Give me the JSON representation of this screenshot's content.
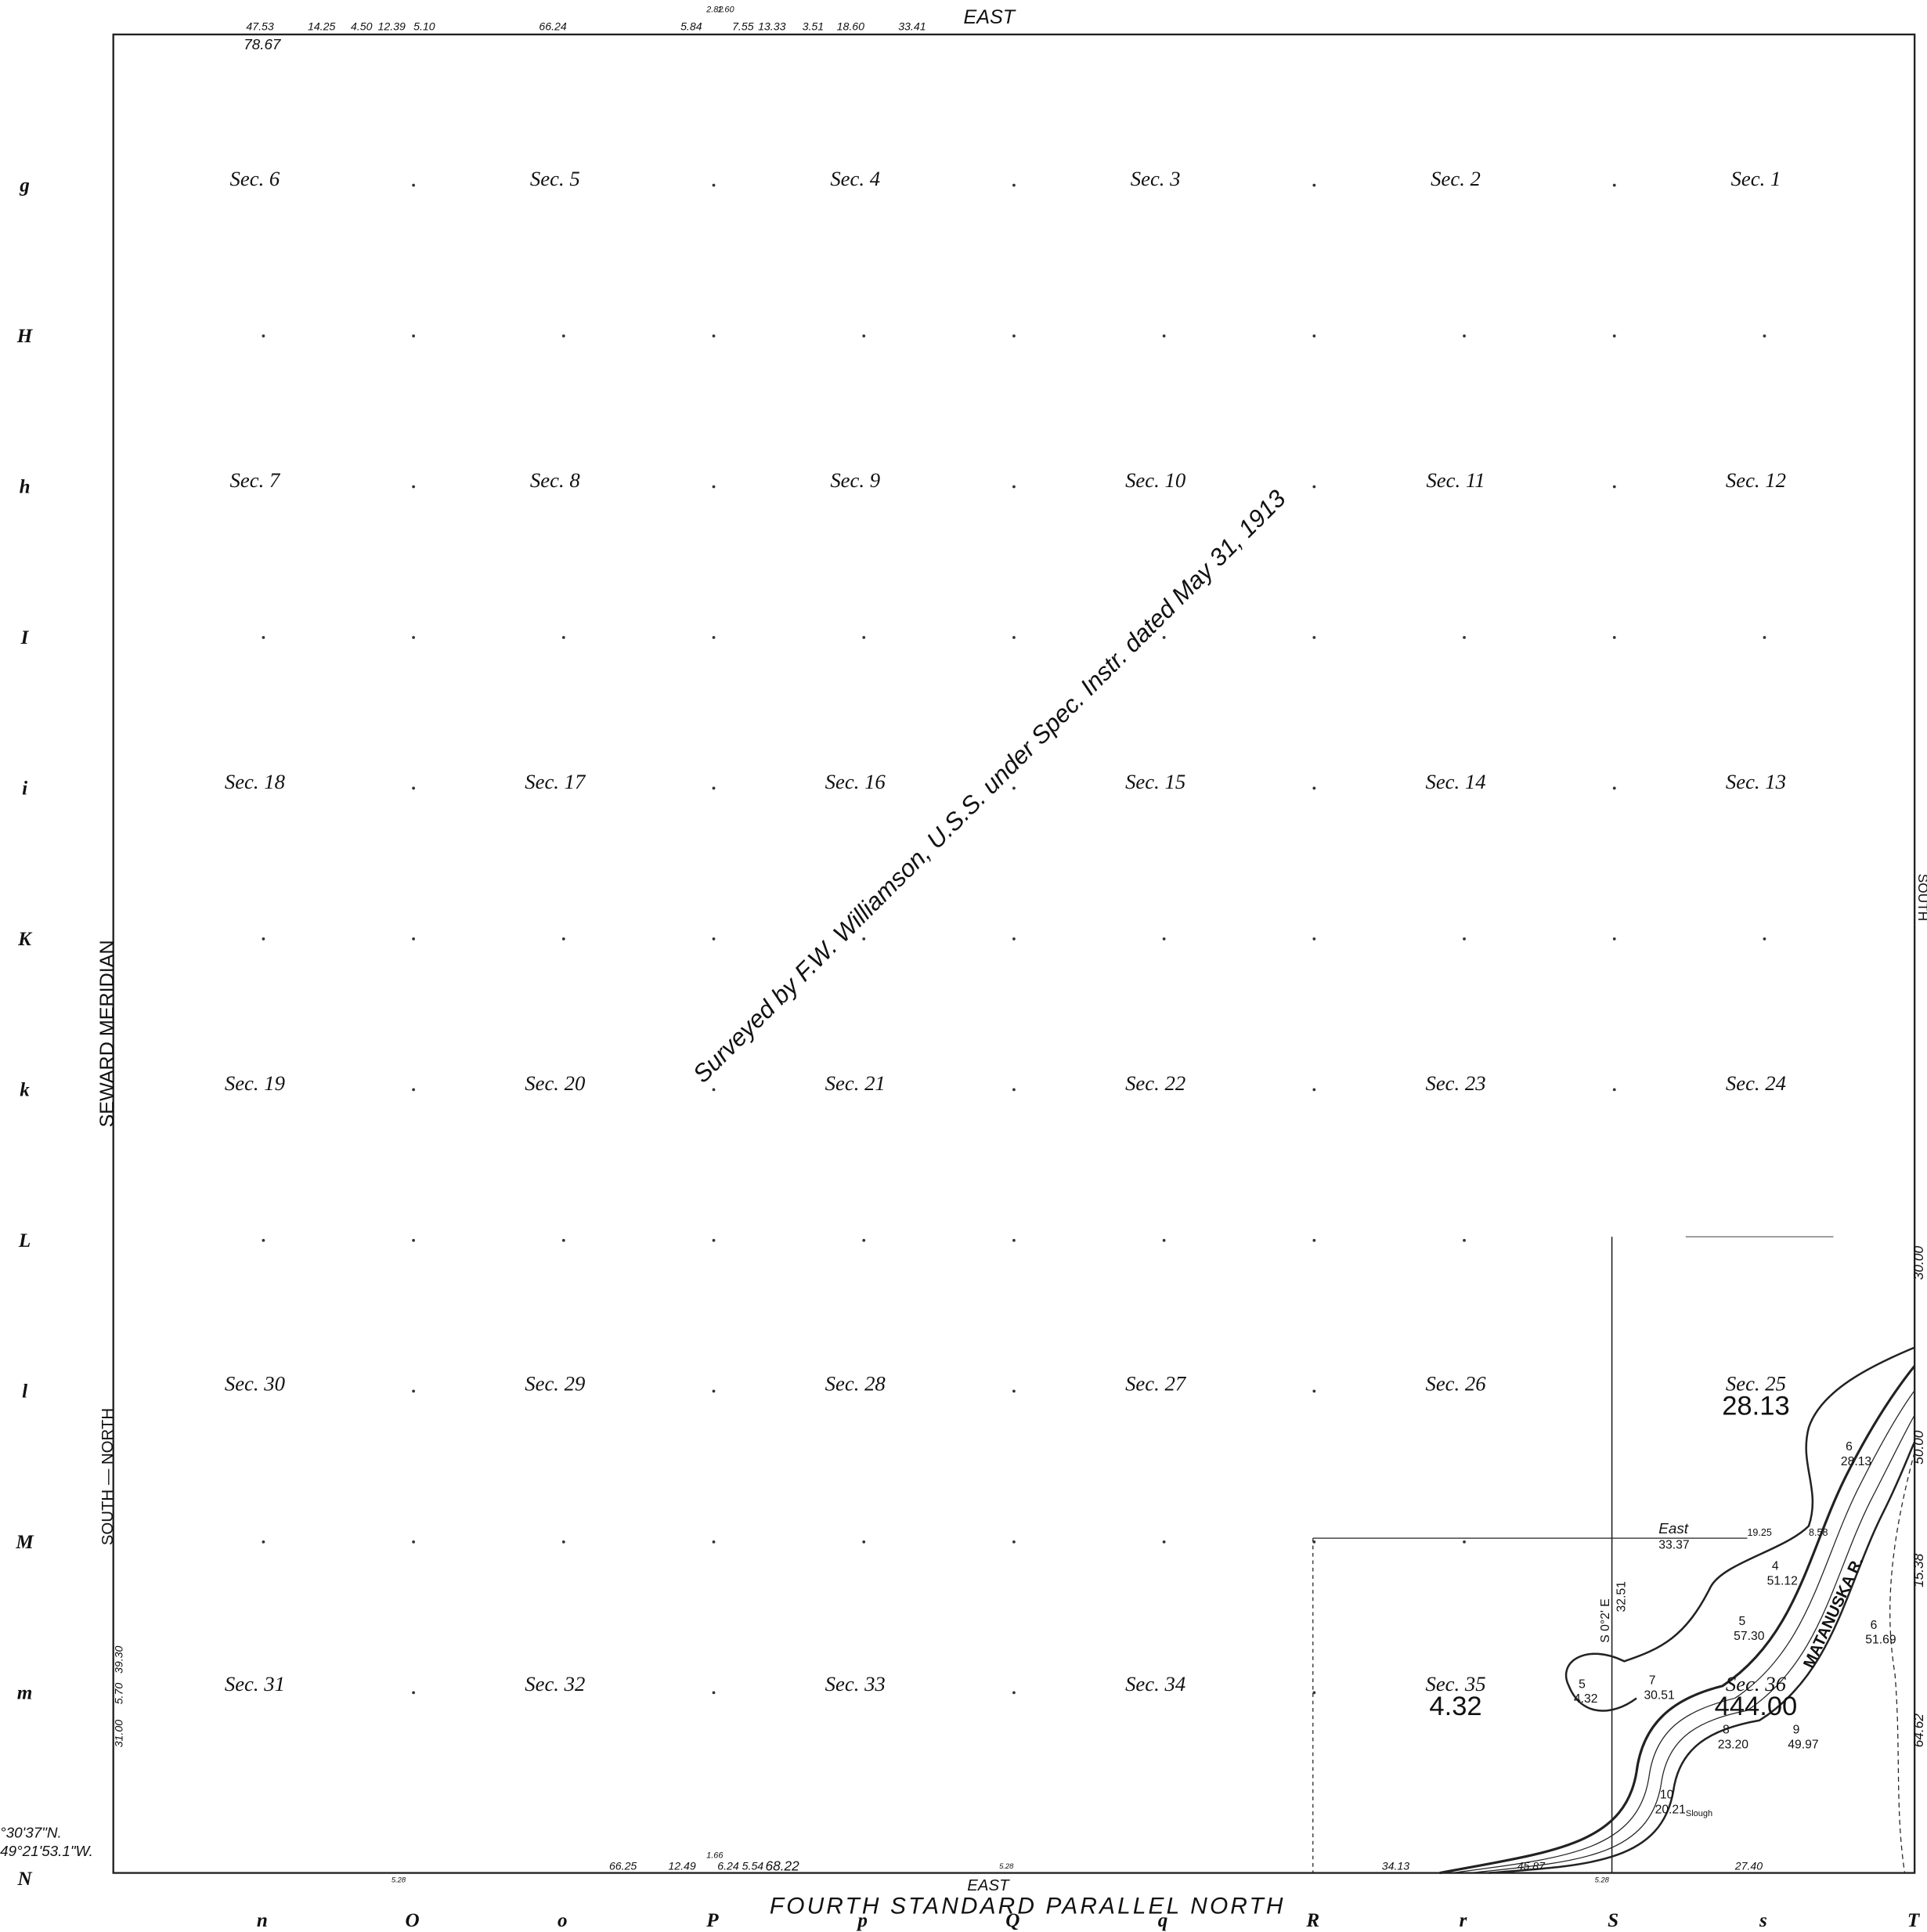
{
  "top_boundary": {
    "label": "EAST",
    "measurements": [
      "47.53",
      "78.67",
      "14.25",
      "4.50",
      "12.39",
      "5.10",
      "66.24",
      "5.84",
      "2.82",
      "1.60",
      "7.55",
      "13.33",
      "3.51",
      "18.60",
      "33.41"
    ]
  },
  "sections": [
    {
      "label": "Sec. 6"
    },
    {
      "label": "Sec. 5"
    },
    {
      "label": "Sec. 4"
    },
    {
      "label": "Sec. 3"
    },
    {
      "label": "Sec. 2"
    },
    {
      "label": "Sec. 1"
    },
    {
      "label": "Sec. 7"
    },
    {
      "label": "Sec. 8"
    },
    {
      "label": "Sec. 9"
    },
    {
      "label": "Sec. 10"
    },
    {
      "label": "Sec. 11"
    },
    {
      "label": "Sec. 12"
    },
    {
      "label": "Sec. 18"
    },
    {
      "label": "Sec. 17"
    },
    {
      "label": "Sec. 16"
    },
    {
      "label": "Sec. 15"
    },
    {
      "label": "Sec. 14"
    },
    {
      "label": "Sec. 13"
    },
    {
      "label": "Sec. 19"
    },
    {
      "label": "Sec. 20"
    },
    {
      "label": "Sec. 21"
    },
    {
      "label": "Sec. 22"
    },
    {
      "label": "Sec. 23"
    },
    {
      "label": "Sec. 24"
    },
    {
      "label": "Sec. 30"
    },
    {
      "label": "Sec. 29"
    },
    {
      "label": "Sec. 28"
    },
    {
      "label": "Sec. 27"
    },
    {
      "label": "Sec. 26"
    },
    {
      "label": "Sec. 25",
      "area": "28.13"
    },
    {
      "label": "Sec. 31"
    },
    {
      "label": "Sec. 32"
    },
    {
      "label": "Sec. 33"
    },
    {
      "label": "Sec. 34"
    },
    {
      "label": "Sec. 35",
      "area": "4.32"
    },
    {
      "label": "Sec. 36",
      "area": "444.00"
    }
  ],
  "left_grid_labels": [
    "g",
    "H",
    "h",
    "I",
    "i",
    "K",
    "k",
    "L",
    "l",
    "M",
    "m",
    "N"
  ],
  "bottom_grid_labels": [
    "n",
    "O",
    "o",
    "P",
    "p",
    "Q",
    "q",
    "R",
    "r",
    "S",
    "s",
    "T"
  ],
  "annotation": "Surveyed by F.W. Williamson, U.S.S. under Spec. Instr. dated May 31, 1913",
  "left_boundary": {
    "label": "SEWARD MERIDIAN",
    "lower_label": "SOUTH — NORTH",
    "measurements": [
      "31.00",
      "5.70",
      "39.30"
    ]
  },
  "coordinates": [
    "°30'37\"N.",
    "49°21'53.1\"W."
  ],
  "bottom_boundary": {
    "label": "EAST",
    "title": "FOURTH STANDARD PARALLEL NORTH",
    "measurements": [
      "66.25",
      "12.49",
      "1.66",
      "6.24",
      "5.54",
      "68.22",
      "5.28",
      "5.28",
      "34.13",
      "45.87",
      "5.28",
      "27.40"
    ]
  },
  "right_boundary": {
    "label": "SOUTH",
    "measurements": [
      "30.00",
      "50.00",
      "15.38",
      "64.62"
    ]
  },
  "lots": {
    "east_label": "East",
    "east_distance": "33.37",
    "line_a": "19.25",
    "line_b": "8.58",
    "bearing": "S 0°2' E",
    "bearing_distance": "32.51",
    "river": "MATANUSKA R.",
    "slough": "Slough",
    "items": [
      {
        "number": "6",
        "area": "28.13"
      },
      {
        "number": "4",
        "area": "51.12"
      },
      {
        "number": "5",
        "area": "57.30"
      },
      {
        "number": "6",
        "area": "51.69"
      },
      {
        "number": "7",
        "area": "30.51"
      },
      {
        "number": "8",
        "area": "23.20"
      },
      {
        "number": "9",
        "area": "49.97"
      },
      {
        "number": "10",
        "area": "20.21"
      },
      {
        "number": "5",
        "area": "4.32"
      }
    ]
  }
}
